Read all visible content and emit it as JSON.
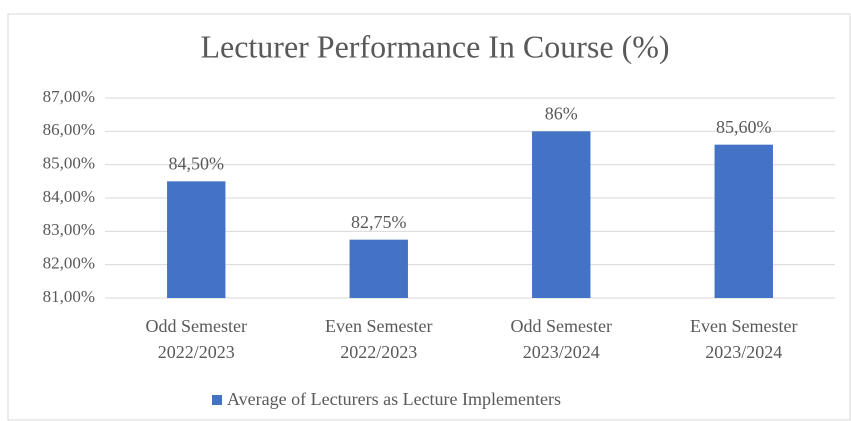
{
  "chart_data": {
    "type": "bar",
    "title": "Lecturer Performance In Course (%)",
    "categories": [
      [
        "Odd Semester",
        "2022/2023"
      ],
      [
        "Even Semester",
        "2022/2023"
      ],
      [
        "Odd Semester",
        "2023/2024"
      ],
      [
        "Even Semester",
        "2023/2024"
      ]
    ],
    "series": [
      {
        "name": "Average of Lecturers as Lecture Implementers",
        "color": "#4472c4",
        "values": [
          84.5,
          82.75,
          86,
          85.6
        ],
        "value_labels": [
          "84,50%",
          "82,75%",
          "86%",
          "85,60%"
        ]
      }
    ],
    "ylim": [
      81,
      87
    ],
    "yticks": [
      {
        "value": 81,
        "label": "81,00%"
      },
      {
        "value": 82,
        "label": "82,00%"
      },
      {
        "value": 83,
        "label": "83,00%"
      },
      {
        "value": 84,
        "label": "84,00%"
      },
      {
        "value": 85,
        "label": "85,00%"
      },
      {
        "value": 86,
        "label": "86,00%"
      },
      {
        "value": 87,
        "label": "87,00%"
      }
    ],
    "grid": true,
    "legend": "bottom"
  }
}
